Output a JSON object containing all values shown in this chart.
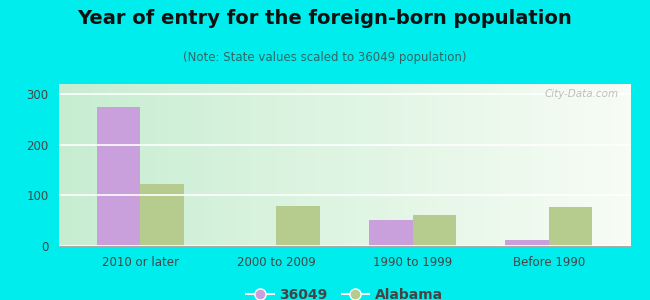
{
  "title": "Year of entry for the foreign-born population",
  "subtitle": "(Note: State values scaled to 36049 population)",
  "categories": [
    "2010 or later",
    "2000 to 2009",
    "1990 to 1999",
    "Before 1990"
  ],
  "series_36049": [
    275,
    0,
    52,
    12
  ],
  "series_alabama": [
    122,
    80,
    62,
    78
  ],
  "color_36049": "#c9a0dc",
  "color_alabama": "#b5cc8e",
  "background_color": "#00eded",
  "ylim": [
    0,
    320
  ],
  "yticks": [
    0,
    100,
    200,
    300
  ],
  "legend_label_1": "36049",
  "legend_label_2": "Alabama",
  "bar_width": 0.32,
  "title_fontsize": 14,
  "subtitle_fontsize": 8.5,
  "tick_fontsize": 8.5,
  "legend_fontsize": 10,
  "watermark": "City-Data.com"
}
